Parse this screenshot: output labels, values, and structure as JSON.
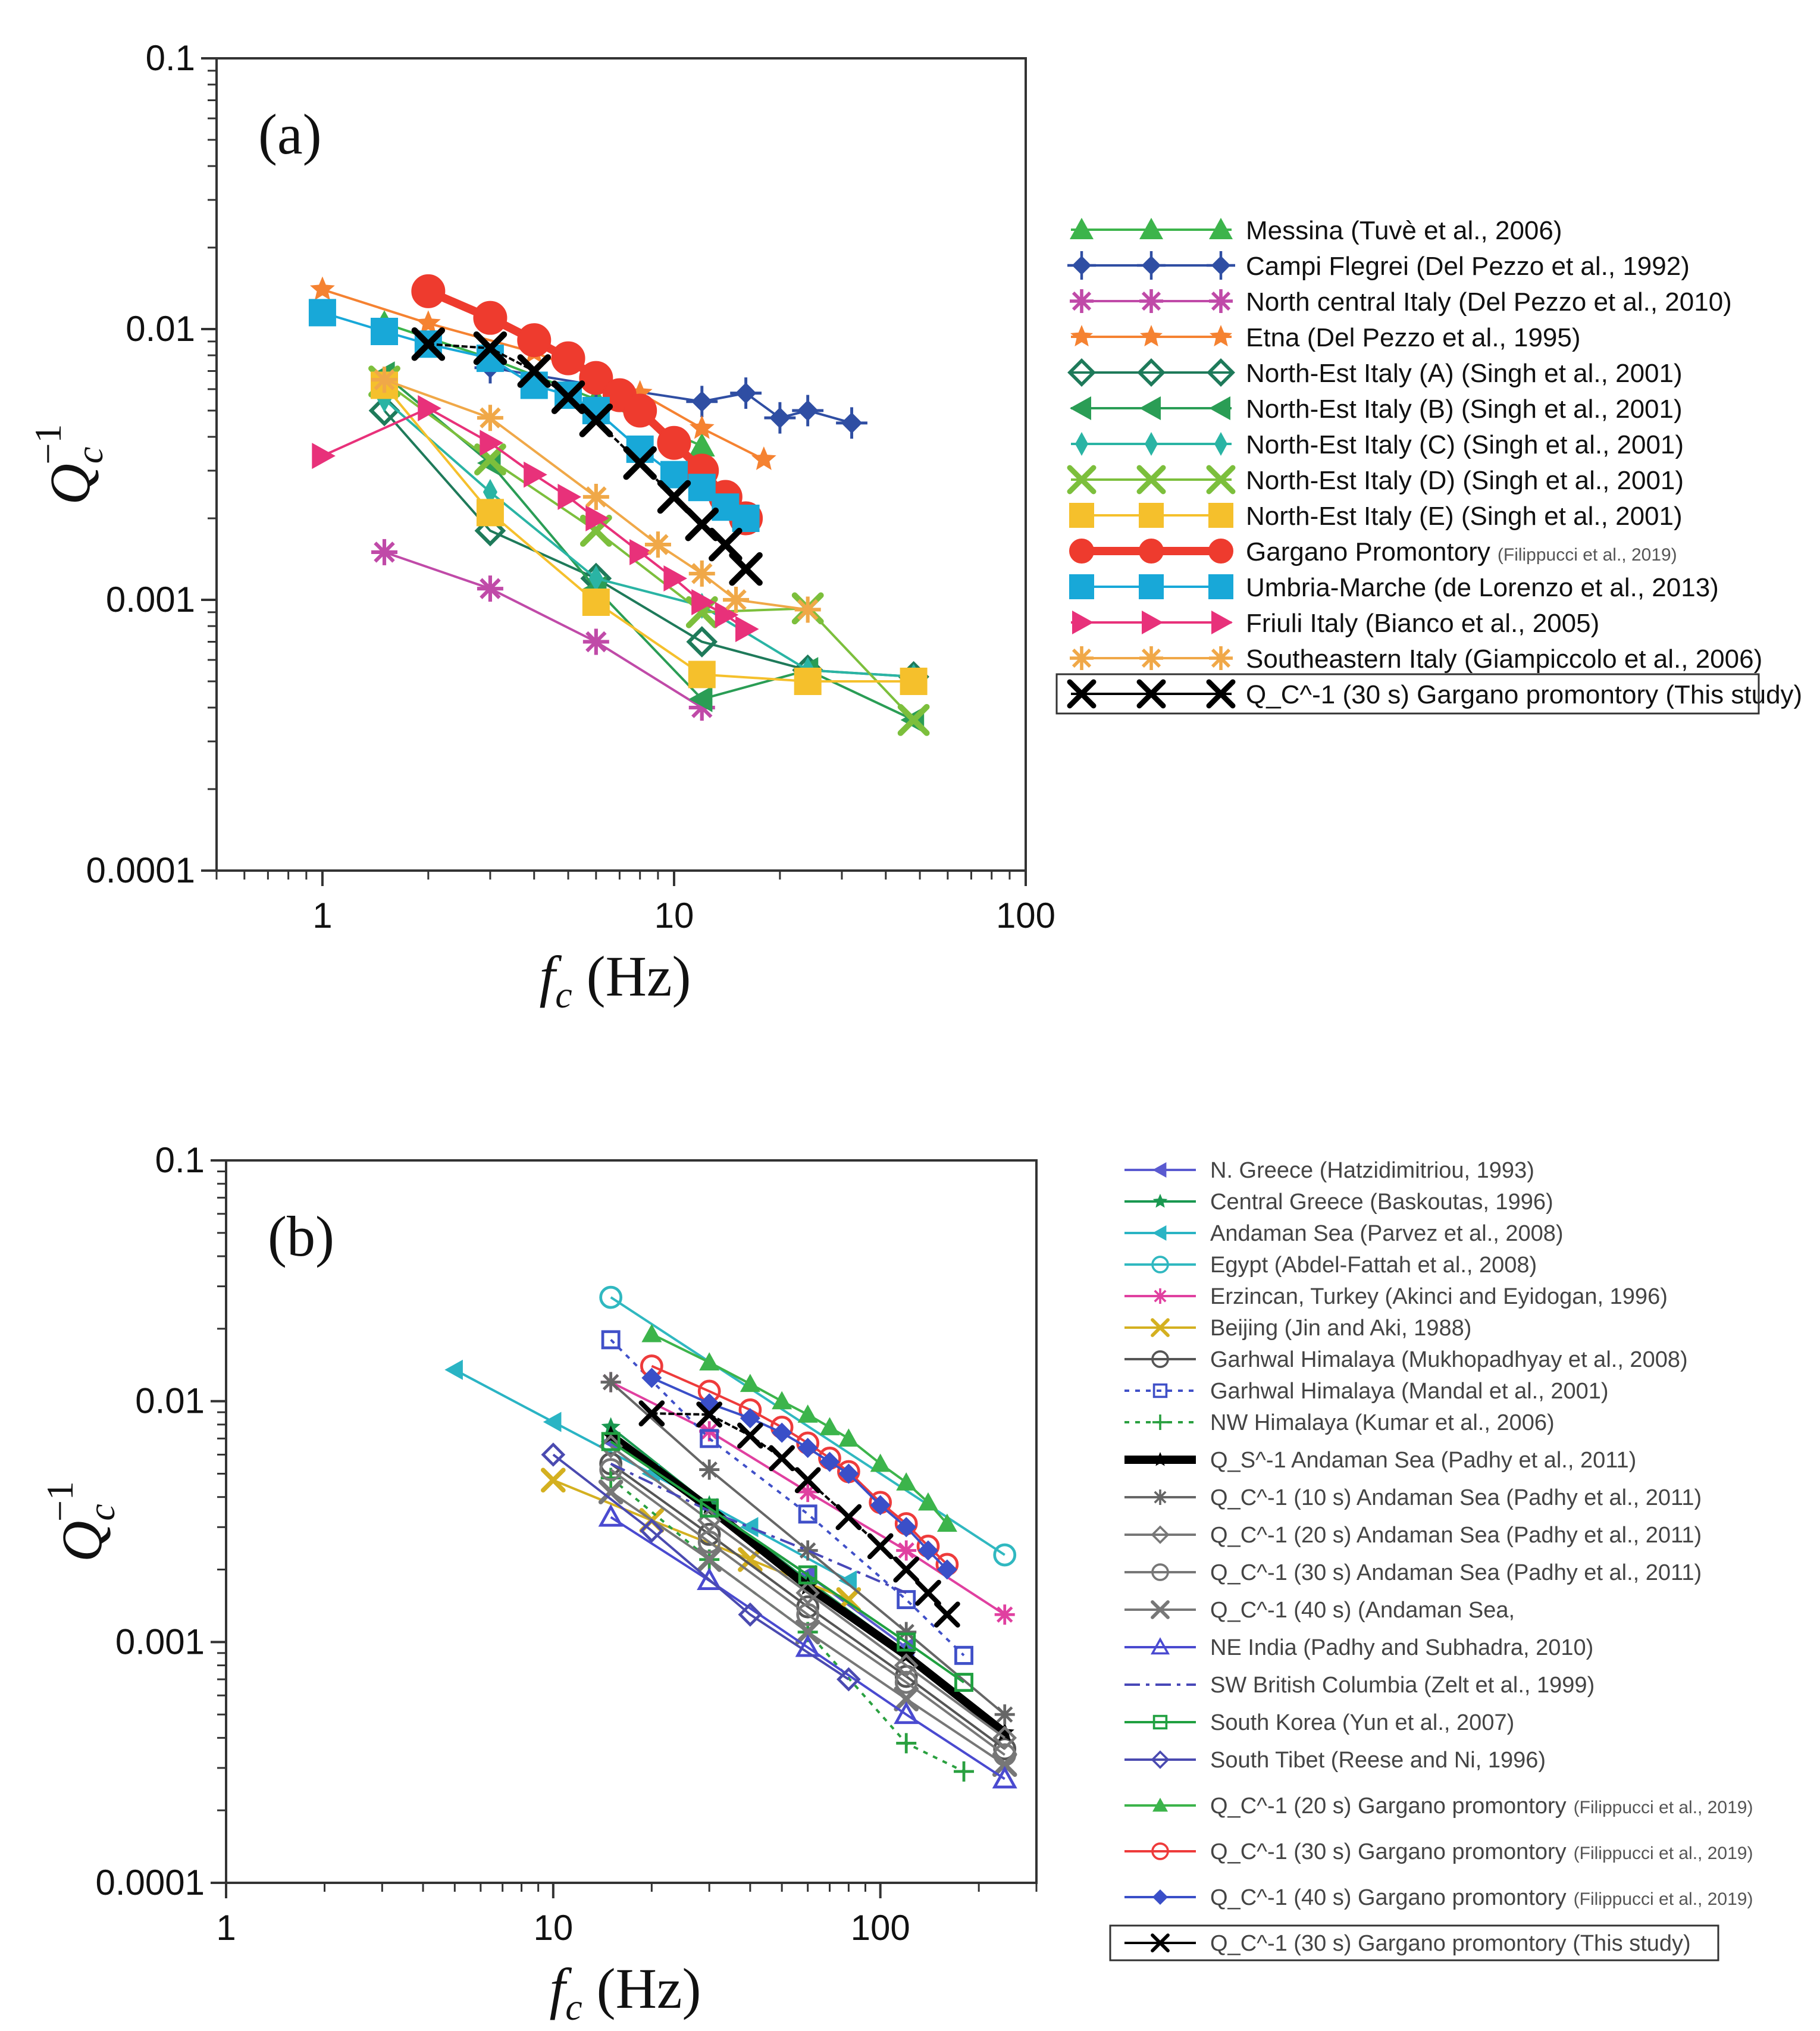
{
  "chart_data": [
    {
      "type": "line",
      "panel_label": "(a)",
      "xlabel": "f_c (Hz)",
      "ylabel": "Q_c^-1",
      "xscale": "log",
      "yscale": "log",
      "xlim": [
        0.5,
        100
      ],
      "ylim": [
        0.0001,
        0.1
      ],
      "x_ticks": [
        "1",
        "10",
        "100"
      ],
      "y_ticks": [
        "0.0001",
        "0.001",
        "0.01",
        "0.1"
      ],
      "legend_position": "right",
      "series": [
        {
          "name": "Messina (Tuvè et al., 2006)",
          "color": "#3cb44b",
          "marker": "triangle",
          "x": [
            1.5,
            3,
            6,
            12
          ],
          "y": [
            0.0105,
            0.0078,
            0.0055,
            0.0037
          ]
        },
        {
          "name": "Campi Flegrei (Del Pezzo et al., 1992)",
          "color": "#2f4ea3",
          "marker": "diamond-plus",
          "x": [
            3,
            6,
            12,
            16,
            20,
            24,
            32
          ],
          "y": [
            0.0072,
            0.0062,
            0.0054,
            0.0058,
            0.0047,
            0.005,
            0.0045
          ]
        },
        {
          "name": "North central Italy (Del Pezzo et al., 2010)",
          "color": "#c04aa8",
          "marker": "asterisk",
          "x": [
            1.5,
            3,
            6,
            12
          ],
          "y": [
            0.0015,
            0.0011,
            0.0007,
            0.0004
          ]
        },
        {
          "name": "Etna (Del Pezzo et al., 1995)",
          "color": "#f58231",
          "marker": "star",
          "x": [
            1,
            2,
            4,
            8,
            12,
            18
          ],
          "y": [
            0.014,
            0.0105,
            0.0082,
            0.0058,
            0.0043,
            0.0033
          ]
        },
        {
          "name": "North-Est Italy (A) (Singh et al., 2001)",
          "color": "#1e7a5a",
          "marker": "diamond-open",
          "x": [
            1.5,
            3,
            6,
            12,
            24,
            48
          ],
          "y": [
            0.005,
            0.0018,
            0.0012,
            0.0007,
            0.00055,
            0.00052
          ]
        },
        {
          "name": "North-Est Italy (B) (Singh et al., 2001)",
          "color": "#2a9d55",
          "marker": "triangle-left",
          "x": [
            1.5,
            3,
            6,
            12,
            24,
            48
          ],
          "y": [
            0.0068,
            0.0032,
            0.0011,
            0.00043,
            0.00055,
            0.00036
          ]
        },
        {
          "name": "North-Est Italy (C) (Singh et al., 2001)",
          "color": "#2ab4a4",
          "marker": "diamond-thin",
          "x": [
            1.5,
            3,
            6,
            12,
            24,
            48
          ],
          "y": [
            0.0055,
            0.0025,
            0.0012,
            0.00095,
            0.00055,
            0.00052
          ]
        },
        {
          "name": "North-Est Italy (D) (Singh et al., 2001)",
          "color": "#7cbf3c",
          "marker": "x",
          "x": [
            1.5,
            3,
            6,
            12,
            24,
            48
          ],
          "y": [
            0.0064,
            0.0033,
            0.0018,
            0.0009,
            0.00093,
            0.00036
          ]
        },
        {
          "name": "North-Est Italy (E) (Singh et al., 2001)",
          "color": "#f5c02c",
          "marker": "square",
          "x": [
            1.5,
            3,
            6,
            12,
            24,
            48
          ],
          "y": [
            0.0062,
            0.0021,
            0.00098,
            0.00053,
            0.0005,
            0.0005
          ]
        },
        {
          "name": "Gargano Promontory",
          "name_suffix": "(Filippucci et al., 2019)",
          "color": "#ee3b2e",
          "marker": "circle",
          "thick": true,
          "x": [
            2,
            3,
            4,
            5,
            6,
            7,
            8,
            10,
            12,
            14,
            16
          ],
          "y": [
            0.0138,
            0.011,
            0.0091,
            0.0078,
            0.0066,
            0.0057,
            0.005,
            0.0038,
            0.003,
            0.0024,
            0.002
          ]
        },
        {
          "name": "Umbria-Marche (de Lorenzo et al., 2013)",
          "color": "#18a8d8",
          "marker": "square",
          "x": [
            1,
            1.5,
            2,
            3,
            4,
            5,
            6,
            8,
            10,
            12,
            14,
            16
          ],
          "y": [
            0.0115,
            0.0098,
            0.0088,
            0.0078,
            0.0062,
            0.0057,
            0.005,
            0.0036,
            0.0029,
            0.0026,
            0.0022,
            0.002
          ]
        },
        {
          "name": "Friuli Italy (Bianco et al., 2005)",
          "color": "#e8317a",
          "marker": "triangle-right",
          "x": [
            1,
            2,
            3,
            4,
            5,
            6,
            8,
            10,
            12,
            14,
            16
          ],
          "y": [
            0.0034,
            0.0051,
            0.0038,
            0.0029,
            0.0024,
            0.002,
            0.0015,
            0.0012,
            0.00098,
            0.00088,
            0.00078
          ]
        },
        {
          "name": "Southeastern Italy (Giampiccolo et al., 2006)",
          "color": "#f0a848",
          "marker": "asterisk",
          "x": [
            1.5,
            3,
            6,
            9,
            12,
            15,
            24
          ],
          "y": [
            0.0065,
            0.0047,
            0.0024,
            0.0016,
            0.00125,
            0.001,
            0.00092
          ]
        },
        {
          "name": "Q_C^-1 (30 s) Gargano promontory (This study)",
          "color": "#000000",
          "marker": "x",
          "x": [
            2,
            3,
            4,
            5,
            6,
            8,
            10,
            12,
            14,
            16
          ],
          "y": [
            0.0088,
            0.0085,
            0.007,
            0.0056,
            0.0046,
            0.0032,
            0.0024,
            0.0019,
            0.0016,
            0.0013
          ]
        }
      ]
    },
    {
      "type": "line",
      "panel_label": "(b)",
      "xlabel": "f_c (Hz)",
      "ylabel": "Q_c^-1",
      "xscale": "log",
      "yscale": "log",
      "xlim": [
        1,
        300
      ],
      "ylim": [
        0.0001,
        0.1
      ],
      "x_ticks": [
        "1",
        "10",
        "100"
      ],
      "y_ticks": [
        "0.0001",
        "0.001",
        "0.01",
        "0.1"
      ],
      "legend_position": "right",
      "series": [
        {
          "name": "N. Greece (Hatzidimitriou, 1993)",
          "color": "#5a5ad0",
          "marker": "triangle-left",
          "x": [
            15,
            30,
            60,
            120
          ],
          "y": [
            0.0068,
            0.0036,
            0.0019,
            0.00095
          ]
        },
        {
          "name": "Central Greece (Baskoutas, 1996)",
          "color": "#1a9850",
          "marker": "star",
          "x": [
            15,
            30,
            60,
            120
          ],
          "y": [
            0.0078,
            0.0037,
            0.0018,
            0.0009
          ]
        },
        {
          "name": "Andaman Sea (Parvez et al., 2008)",
          "color": "#2ab4c4",
          "marker": "triangle-left",
          "x": [
            5,
            10,
            20,
            40,
            80
          ],
          "y": [
            0.0135,
            0.0082,
            0.005,
            0.003,
            0.0018
          ]
        },
        {
          "name": "Egypt (Abdel-Fattah et al., 2008)",
          "color": "#30b8c0",
          "marker": "circle-open",
          "x": [
            15,
            240
          ],
          "y": [
            0.027,
            0.0023
          ]
        },
        {
          "name": "Erzincan, Turkey (Akinci and Eyidogan, 1996)",
          "color": "#e040a0",
          "marker": "asterisk",
          "x": [
            15,
            30,
            60,
            120,
            240
          ],
          "y": [
            0.012,
            0.0075,
            0.0042,
            0.0024,
            0.0013
          ]
        },
        {
          "name": "Beijing (Jin and Aki, 1988)",
          "color": "#d4b020",
          "marker": "x",
          "x": [
            10,
            20,
            40,
            80
          ],
          "y": [
            0.0047,
            0.0032,
            0.0022,
            0.0015
          ]
        },
        {
          "name": "Garhwal Himalaya (Mukhopadhyay et al., 2008)",
          "color": "#555555",
          "marker": "circle-open",
          "x": [
            15,
            30,
            60,
            120,
            240
          ],
          "y": [
            0.0055,
            0.0028,
            0.0014,
            0.00072,
            0.00036
          ]
        },
        {
          "name": "Garhwal Himalaya (Mandal et al., 2001)",
          "color": "#4050c8",
          "marker": "square-open",
          "dashed": true,
          "x": [
            15,
            30,
            60,
            120,
            180
          ],
          "y": [
            0.018,
            0.007,
            0.0034,
            0.0015,
            0.00088
          ]
        },
        {
          "name": "NW Himalaya (Kumar et al., 2006)",
          "color": "#2aa040",
          "marker": "plus",
          "dashed": true,
          "x": [
            15,
            30,
            60,
            120,
            180
          ],
          "y": [
            0.0048,
            0.0022,
            0.0011,
            0.00038,
            0.00029
          ]
        },
        {
          "name": "Q_S^-1 Andaman Sea (Padhy et al., 2011)",
          "color": "#000000",
          "marker": "star",
          "thick": true,
          "x": [
            15,
            30,
            60,
            120,
            240
          ],
          "y": [
            0.0072,
            0.0036,
            0.0017,
            0.00088,
            0.00042
          ]
        },
        {
          "name": "Q_C^-1 (10 s) Andaman Sea (Padhy et al., 2011)",
          "color": "#666666",
          "marker": "asterisk",
          "x": [
            15,
            30,
            60,
            120,
            240
          ],
          "y": [
            0.012,
            0.0052,
            0.0024,
            0.0011,
            0.0005
          ]
        },
        {
          "name": "Q_C^-1 (20 s) Andaman Sea (Padhy et al., 2011)",
          "color": "#777777",
          "marker": "diamond-open",
          "x": [
            15,
            30,
            60,
            120,
            240
          ],
          "y": [
            0.0065,
            0.0032,
            0.0016,
            0.0008,
            0.0004
          ]
        },
        {
          "name": "Q_C^-1 (30 s) Andaman Sea (Padhy et al., 2011)",
          "color": "#777777",
          "marker": "circle-open",
          "x": [
            15,
            30,
            60,
            120,
            240
          ],
          "y": [
            0.0052,
            0.0026,
            0.0013,
            0.00068,
            0.00034
          ]
        },
        {
          "name": "Q_C^-1 (40 s) (Andaman Sea,",
          "color": "#777777",
          "marker": "x",
          "x": [
            15,
            30,
            60,
            120,
            240
          ],
          "y": [
            0.0042,
            0.0022,
            0.0011,
            0.00058,
            0.00031
          ]
        },
        {
          "name": "NE India (Padhy and Subhadra, 2010)",
          "color": "#4a4ad0",
          "marker": "triangle-open",
          "x": [
            15,
            30,
            60,
            120,
            240
          ],
          "y": [
            0.0033,
            0.0018,
            0.00095,
            0.0005,
            0.00027
          ]
        },
        {
          "name": "SW British Columbia (Zelt et al., 1999)",
          "color": "#4848b8",
          "marker": "none",
          "dashdot": true,
          "x": [
            15,
            30,
            60,
            120
          ],
          "y": [
            0.0055,
            0.0035,
            0.0024,
            0.0016
          ]
        },
        {
          "name": "South Korea (Yun et al., 2007)",
          "color": "#20a040",
          "marker": "square-open",
          "x": [
            15,
            30,
            60,
            120,
            180
          ],
          "y": [
            0.0068,
            0.0036,
            0.0019,
            0.001,
            0.00068
          ]
        },
        {
          "name": "South Tibet (Reese and Ni, 1996)",
          "color": "#4a4ab0",
          "marker": "diamond-open",
          "x": [
            10,
            20,
            40,
            80
          ],
          "y": [
            0.006,
            0.0029,
            0.0013,
            0.0007
          ]
        },
        {
          "name": "Q_C^-1 (20 s) Gargano promontory",
          "name_suffix": "(Filippucci et al., 2019)",
          "color": "#3cb44b",
          "marker": "triangle",
          "x": [
            20,
            30,
            40,
            50,
            60,
            70,
            80,
            100,
            120,
            140,
            160
          ],
          "y": [
            0.019,
            0.0145,
            0.0118,
            0.01,
            0.0088,
            0.0078,
            0.007,
            0.0055,
            0.0046,
            0.0038,
            0.0031
          ]
        },
        {
          "name": "Q_C^-1 (30 s) Gargano promontory",
          "name_suffix": "(Filippucci et al., 2019)",
          "color": "#ee3b3b",
          "marker": "circle-open",
          "x": [
            20,
            30,
            40,
            50,
            60,
            70,
            80,
            100,
            120,
            140,
            160
          ],
          "y": [
            0.014,
            0.011,
            0.0092,
            0.0078,
            0.0067,
            0.0058,
            0.0051,
            0.0038,
            0.0031,
            0.0025,
            0.0021
          ]
        },
        {
          "name": "Q_C^-1 (40 s) Gargano promontory",
          "name_suffix": "(Filippucci et al., 2019)",
          "color": "#3a4fc8",
          "marker": "diamond",
          "x": [
            20,
            30,
            40,
            50,
            60,
            70,
            80,
            100,
            120,
            140,
            160
          ],
          "y": [
            0.0125,
            0.0098,
            0.0085,
            0.0074,
            0.0064,
            0.0056,
            0.005,
            0.0037,
            0.003,
            0.0024,
            0.002
          ]
        },
        {
          "name": "Q_C^-1 (30 s) Gargano promontory (This study)",
          "color": "#000000",
          "marker": "x",
          "x": [
            20,
            30,
            40,
            50,
            60,
            80,
            100,
            120,
            140,
            160
          ],
          "y": [
            0.0089,
            0.0088,
            0.0072,
            0.0058,
            0.0047,
            0.0033,
            0.0025,
            0.002,
            0.0016,
            0.0013
          ]
        }
      ]
    }
  ]
}
